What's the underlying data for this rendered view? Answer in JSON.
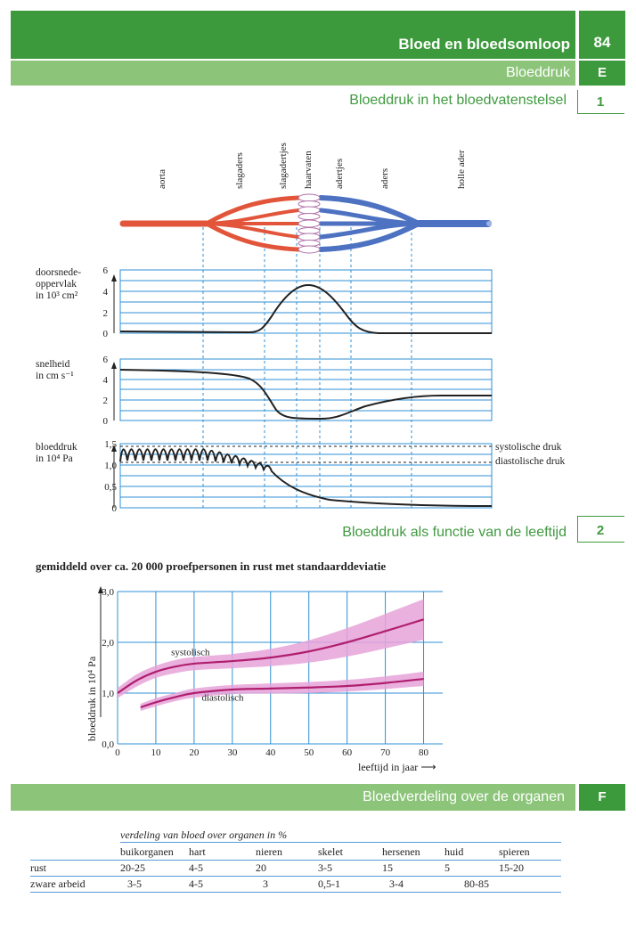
{
  "header": {
    "chapter_title": "Bloed en bloedsomloop",
    "page_number": "84",
    "section_title": "Bloeddruk",
    "section_letter": "E"
  },
  "section1": {
    "title": "Bloeddruk in het bloedvatenstelsel",
    "number": "1",
    "vessel_labels": [
      "aorta",
      "slagaders",
      "slagadertjes",
      "haarvaten",
      "adertjes",
      "aders",
      "holle ader"
    ],
    "panels": [
      {
        "label_lines": [
          "doorsnede-",
          "oppervlak",
          "in 10³ cm²"
        ],
        "y_ticks": [
          "6",
          "4",
          "2",
          "0"
        ]
      },
      {
        "label_lines": [
          "snelheid",
          "in cm s⁻¹"
        ],
        "y_ticks": [
          "6",
          "4",
          "2",
          "0"
        ]
      },
      {
        "label_lines": [
          "bloeddruk",
          "in 10⁴ Pa"
        ],
        "y_ticks": [
          "1,5",
          "1,0",
          "0,5",
          "0"
        ],
        "annotations": [
          "systolische druk",
          "diastolische druk"
        ]
      }
    ]
  },
  "section2": {
    "title": "Bloeddruk als functie van de leeftijd",
    "number": "2",
    "subtitle": "gemiddeld over ca. 20 000 proefpersonen in rust met standaarddeviatie"
  },
  "chart_data": {
    "type": "line",
    "title": "",
    "xlabel": "leeftijd in jaar",
    "ylabel": "bloeddruk in 10⁴ Pa",
    "xlim": [
      0,
      85
    ],
    "ylim": [
      0,
      3.0
    ],
    "x_ticks": [
      "0",
      "10",
      "20",
      "30",
      "40",
      "50",
      "60",
      "70",
      "80"
    ],
    "y_ticks": [
      "0,0",
      "1,0",
      "2,0",
      "3,0"
    ],
    "grid": true,
    "series": [
      {
        "name": "systolisch",
        "x": [
          0,
          5,
          10,
          15,
          20,
          30,
          40,
          50,
          60,
          70,
          80
        ],
        "values": [
          1.0,
          1.25,
          1.42,
          1.52,
          1.58,
          1.63,
          1.7,
          1.82,
          2.0,
          2.22,
          2.45
        ],
        "band_low": [
          0.9,
          1.13,
          1.3,
          1.39,
          1.45,
          1.49,
          1.53,
          1.6,
          1.72,
          1.88,
          2.05
        ],
        "band_high": [
          1.1,
          1.37,
          1.54,
          1.65,
          1.71,
          1.77,
          1.87,
          2.04,
          2.28,
          2.56,
          2.85
        ]
      },
      {
        "name": "diastolisch",
        "x": [
          6,
          10,
          15,
          20,
          30,
          40,
          50,
          60,
          70,
          80
        ],
        "values": [
          0.72,
          0.82,
          0.92,
          1.0,
          1.07,
          1.09,
          1.11,
          1.14,
          1.2,
          1.28
        ],
        "band_low": [
          0.65,
          0.74,
          0.84,
          0.91,
          0.98,
          0.99,
          1.0,
          1.03,
          1.08,
          1.14
        ],
        "band_high": [
          0.79,
          0.9,
          1.0,
          1.09,
          1.16,
          1.19,
          1.22,
          1.26,
          1.33,
          1.42
        ]
      }
    ],
    "colors": {
      "line": "#b01e6e",
      "band": "#e6a3d9"
    }
  },
  "section3": {
    "title": "Bloedverdeling over de organen",
    "letter": "F",
    "table_caption": "verdeling van bloed over organen in %",
    "columns": [
      "",
      "buikorganen",
      "hart",
      "nieren",
      "skelet",
      "hersenen",
      "huid",
      "spieren"
    ],
    "rows": [
      [
        "rust",
        "20-25",
        "4-5",
        "20",
        "3-5",
        "15",
        "5",
        "15-20"
      ],
      [
        "zware arbeid",
        "3-5",
        "4-5",
        "3",
        "0,5-1",
        "3-4",
        "80-85",
        ""
      ]
    ]
  },
  "colors": {
    "band_dark": "#3c9a3c",
    "band_light": "#8cc47a",
    "artery": "#e2553a",
    "vein": "#4d72c2",
    "grid_blue": "#2f8fd6",
    "title_green": "#3f9a3f"
  }
}
